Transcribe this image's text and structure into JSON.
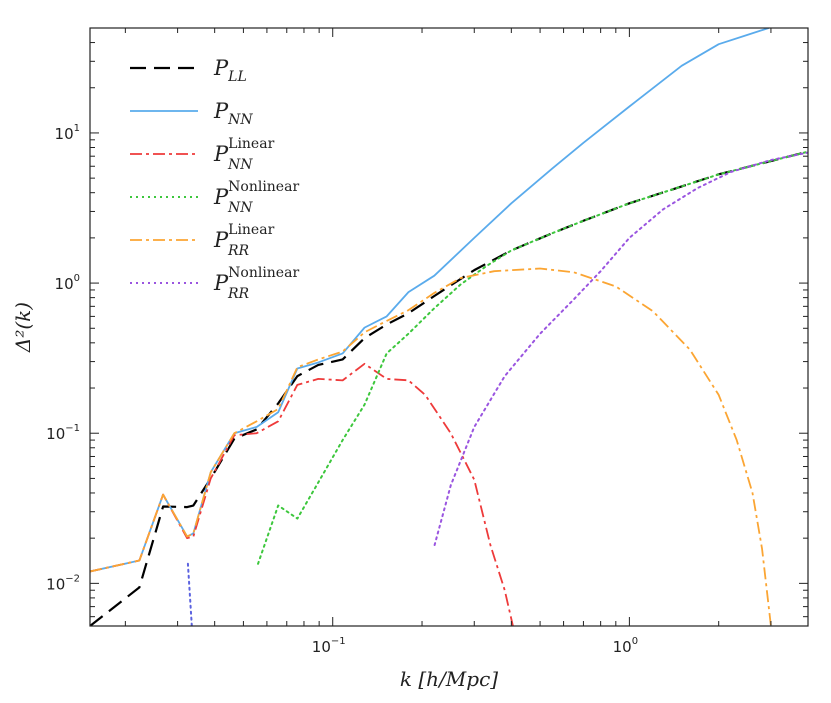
{
  "chart_data": {
    "type": "line",
    "title": "",
    "xlabel": "k [h/Mpc]",
    "ylabel": "Δ²(k)",
    "xscale": "log",
    "yscale": "log",
    "xlim": [
      0.0152,
      4.0
    ],
    "ylim": [
      0.0052,
      50
    ],
    "x_ticks": [
      {
        "value": 0.1,
        "base": "10",
        "exp": "−1"
      },
      {
        "value": 1.0,
        "base": "10",
        "exp": "0"
      }
    ],
    "y_ticks": [
      {
        "value": 0.01,
        "base": "10",
        "exp": "−2"
      },
      {
        "value": 0.1,
        "base": "10",
        "exp": "−1"
      },
      {
        "value": 1.0,
        "base": "10",
        "exp": "0"
      },
      {
        "value": 10.0,
        "base": "10",
        "exp": "1"
      }
    ],
    "legend_position": "top-left",
    "series": [
      {
        "name": "P_LL",
        "main": "P",
        "sub": "LL",
        "sup": "",
        "color": "#000000",
        "dash": "16,8",
        "width": 2.2,
        "points": [
          [
            0.0152,
            0.0052
          ],
          [
            0.0223,
            0.0094
          ],
          [
            0.0268,
            0.0325
          ],
          [
            0.0323,
            0.0322
          ],
          [
            0.0339,
            0.033
          ],
          [
            0.0388,
            0.05
          ],
          [
            0.0466,
            0.092
          ],
          [
            0.0554,
            0.106
          ],
          [
            0.0655,
            0.158
          ],
          [
            0.076,
            0.24
          ],
          [
            0.0894,
            0.285
          ],
          [
            0.108,
            0.31
          ],
          [
            0.128,
            0.43
          ],
          [
            0.152,
            0.53
          ],
          [
            0.18,
            0.63
          ],
          [
            0.22,
            0.82
          ],
          [
            0.3,
            1.22
          ],
          [
            0.4,
            1.65
          ],
          [
            0.55,
            2.15
          ],
          [
            0.7,
            2.6
          ],
          [
            1.0,
            3.4
          ],
          [
            1.5,
            4.4
          ],
          [
            2.0,
            5.3
          ],
          [
            3.0,
            6.5
          ],
          [
            4.0,
            7.5
          ]
        ]
      },
      {
        "name": "P_NN",
        "main": "P",
        "sub": "NN",
        "sup": "",
        "color": "#5aabec",
        "dash": "",
        "width": 1.8,
        "points": [
          [
            0.0152,
            0.012
          ],
          [
            0.0223,
            0.0142
          ],
          [
            0.0268,
            0.039
          ],
          [
            0.0323,
            0.0205
          ],
          [
            0.0339,
            0.0215
          ],
          [
            0.0388,
            0.055
          ],
          [
            0.0466,
            0.1
          ],
          [
            0.0554,
            0.11
          ],
          [
            0.0655,
            0.138
          ],
          [
            0.076,
            0.27
          ],
          [
            0.0894,
            0.296
          ],
          [
            0.108,
            0.34
          ],
          [
            0.128,
            0.505
          ],
          [
            0.152,
            0.6
          ],
          [
            0.18,
            0.87
          ],
          [
            0.22,
            1.12
          ],
          [
            0.3,
            2.0
          ],
          [
            0.4,
            3.4
          ],
          [
            0.55,
            5.8
          ],
          [
            0.7,
            8.6
          ],
          [
            1.0,
            15
          ],
          [
            1.5,
            28
          ],
          [
            2.0,
            39
          ],
          [
            2.5,
            45
          ],
          [
            2.95,
            50
          ]
        ]
      },
      {
        "name": "P_NN^Linear",
        "main": "P",
        "sub": "NN",
        "sup": "Linear",
        "color": "#ee3a3a",
        "dash": "12,4,3,4",
        "width": 1.8,
        "points": [
          [
            0.0152,
            0.012
          ],
          [
            0.0223,
            0.0142
          ],
          [
            0.0268,
            0.039
          ],
          [
            0.0323,
            0.02
          ],
          [
            0.0339,
            0.0205
          ],
          [
            0.0388,
            0.05
          ],
          [
            0.0466,
            0.097
          ],
          [
            0.0554,
            0.1
          ],
          [
            0.0655,
            0.12
          ],
          [
            0.076,
            0.21
          ],
          [
            0.0894,
            0.23
          ],
          [
            0.108,
            0.225
          ],
          [
            0.128,
            0.29
          ],
          [
            0.152,
            0.23
          ],
          [
            0.18,
            0.225
          ],
          [
            0.205,
            0.18
          ],
          [
            0.25,
            0.1
          ],
          [
            0.3,
            0.049
          ],
          [
            0.34,
            0.018
          ],
          [
            0.38,
            0.009
          ],
          [
            0.405,
            0.0052
          ]
        ]
      },
      {
        "name": "P_NN^Nonlinear",
        "main": "P",
        "sub": "NN",
        "sup": "Nonlinear",
        "color": "#3dc73d",
        "dash": "2,4",
        "width": 2.0,
        "points": [
          [
            0.056,
            0.0135
          ],
          [
            0.0655,
            0.033
          ],
          [
            0.076,
            0.027
          ],
          [
            0.0894,
            0.047
          ],
          [
            0.108,
            0.09
          ],
          [
            0.128,
            0.155
          ],
          [
            0.152,
            0.34
          ],
          [
            0.18,
            0.46
          ],
          [
            0.22,
            0.68
          ],
          [
            0.27,
            0.98
          ],
          [
            0.33,
            1.3
          ],
          [
            0.4,
            1.65
          ],
          [
            0.55,
            2.15
          ],
          [
            0.7,
            2.6
          ],
          [
            1.0,
            3.4
          ],
          [
            1.5,
            4.4
          ],
          [
            2.0,
            5.3
          ],
          [
            3.0,
            6.5
          ],
          [
            4.0,
            7.5
          ]
        ]
      },
      {
        "name": "P_RR^Linear",
        "main": "P",
        "sub": "RR",
        "sup": "Linear",
        "color": "#fba533",
        "dash": "12,4,3,4",
        "width": 1.8,
        "points": [
          [
            0.0152,
            0.012
          ],
          [
            0.0223,
            0.0142
          ],
          [
            0.0268,
            0.039
          ],
          [
            0.0323,
            0.0205
          ],
          [
            0.0339,
            0.0215
          ],
          [
            0.0388,
            0.055
          ],
          [
            0.0466,
            0.1
          ],
          [
            0.0554,
            0.12
          ],
          [
            0.0655,
            0.145
          ],
          [
            0.076,
            0.275
          ],
          [
            0.0894,
            0.31
          ],
          [
            0.108,
            0.35
          ],
          [
            0.128,
            0.47
          ],
          [
            0.152,
            0.56
          ],
          [
            0.18,
            0.66
          ],
          [
            0.22,
            0.86
          ],
          [
            0.27,
            1.08
          ],
          [
            0.35,
            1.2
          ],
          [
            0.5,
            1.25
          ],
          [
            0.65,
            1.18
          ],
          [
            0.9,
            0.95
          ],
          [
            1.2,
            0.65
          ],
          [
            1.6,
            0.36
          ],
          [
            2.0,
            0.18
          ],
          [
            2.3,
            0.09
          ],
          [
            2.6,
            0.04
          ],
          [
            2.8,
            0.017
          ],
          [
            3.0,
            0.0052
          ]
        ]
      },
      {
        "name": "P_RR^Nonlinear",
        "main": "P",
        "sub": "RR",
        "sup": "Nonlinear",
        "color": "#9a55e0",
        "dash": "2,4",
        "width": 2.0,
        "points": [
          [
            0.2205,
            0.018
          ],
          [
            0.25,
            0.045
          ],
          [
            0.3,
            0.11
          ],
          [
            0.38,
            0.24
          ],
          [
            0.5,
            0.46
          ],
          [
            0.65,
            0.78
          ],
          [
            0.8,
            1.2
          ],
          [
            1.0,
            2.0
          ],
          [
            1.3,
            3.1
          ],
          [
            1.7,
            4.3
          ],
          [
            2.2,
            5.5
          ],
          [
            3.0,
            6.6
          ],
          [
            4.0,
            7.4
          ]
        ]
      },
      {
        "name": "P_RR^Nonlinear_lowk_tail",
        "main": "",
        "sub": "",
        "sup": "",
        "color": "#5b62e0",
        "dash": "2,4",
        "width": 2.0,
        "legend": false,
        "points": [
          [
            0.0325,
            0.0135
          ],
          [
            0.0335,
            0.0052
          ]
        ]
      }
    ]
  }
}
